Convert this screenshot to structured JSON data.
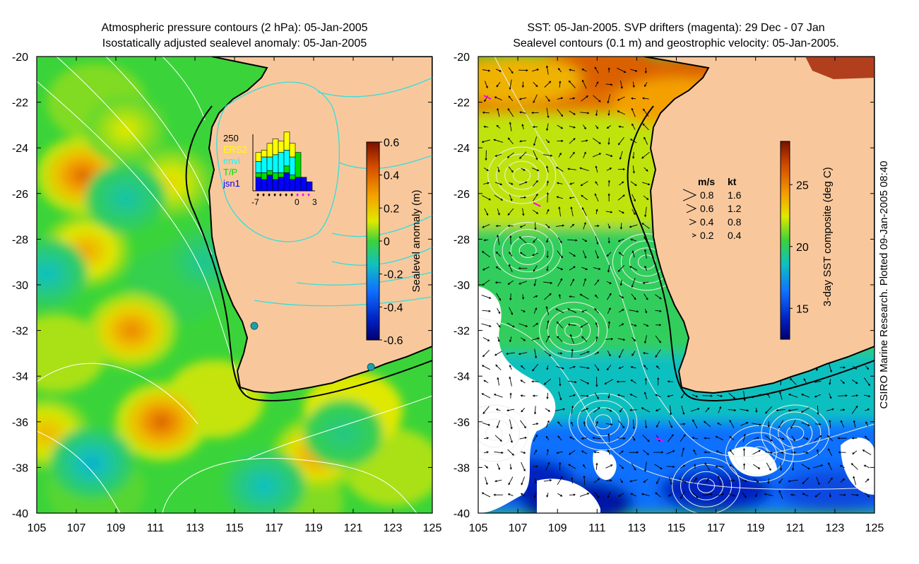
{
  "chart_data": [
    {
      "type": "heatmap",
      "title_line1": "Atmospheric pressure contours (2 hPa): 05-Jan-2005",
      "title_line2": "Isostatically adjusted sealevel anomaly: 05-Jan-2005",
      "xlabel": "",
      "ylabel": "",
      "xlim": [
        105,
        125
      ],
      "ylim": [
        -40,
        -20
      ],
      "x_ticks": [
        105,
        107,
        109,
        111,
        113,
        115,
        117,
        119,
        121,
        123,
        125
      ],
      "y_ticks": [
        -20,
        -22,
        -24,
        -26,
        -28,
        -30,
        -32,
        -34,
        -36,
        -38,
        -40
      ],
      "colorbar": {
        "label": "Sealevel anomaly (m)",
        "range": [
          -0.6,
          0.6
        ],
        "ticks": [
          0.6,
          0.4,
          0.2,
          0,
          -0.2,
          -0.4,
          -0.6
        ],
        "tick_labels": [
          "0.6",
          "0.4",
          "0.2",
          "0",
          "-0.2",
          "-0.4",
          "-0.6"
        ]
      },
      "features": [
        {
          "name": "high",
          "x": 107.3,
          "y": -25.2,
          "value": 0.38
        },
        {
          "name": "high",
          "x": 107.5,
          "y": -28.5,
          "value": 0.25
        },
        {
          "name": "high",
          "x": 109.8,
          "y": -32.0,
          "value": 0.32
        },
        {
          "name": "high",
          "x": 111.3,
          "y": -36.0,
          "value": 0.4
        },
        {
          "name": "high",
          "x": 119.2,
          "y": -37.4,
          "value": 0.28
        },
        {
          "name": "high",
          "x": 105.5,
          "y": -36.5,
          "value": 0.22
        },
        {
          "name": "high",
          "x": 111.8,
          "y": -25.5,
          "value": 0.15
        },
        {
          "name": "high",
          "x": 109.5,
          "y": -23.2,
          "value": 0.12
        },
        {
          "name": "low",
          "x": 109.5,
          "y": -26.2,
          "value": -0.12
        },
        {
          "name": "low",
          "x": 113.5,
          "y": -29.0,
          "value": -0.1
        },
        {
          "name": "low",
          "x": 105.5,
          "y": -29.5,
          "value": -0.15
        },
        {
          "name": "low",
          "x": 107.8,
          "y": -37.8,
          "value": -0.18
        },
        {
          "name": "low",
          "x": 116.5,
          "y": -38.8,
          "value": -0.15
        },
        {
          "name": "low",
          "x": 120.5,
          "y": -36.5,
          "value": -0.08
        }
      ],
      "tide_gauges": [
        {
          "x": 116.0,
          "y": -31.8
        },
        {
          "x": 121.9,
          "y": -33.6
        }
      ],
      "inset": {
        "y_tick_label": "250",
        "legend": [
          {
            "label": "ERS2",
            "color": "#ffff00"
          },
          {
            "label": "envi",
            "color": "#00ffff"
          },
          {
            "label": "T/P",
            "color": "#00dd00"
          },
          {
            "label": "jsn1",
            "color": "#0000ff"
          }
        ],
        "x_tick_labels": [
          "-7",
          "0",
          "3"
        ],
        "days": [
          -7,
          -6,
          -5,
          -4,
          -3,
          -2,
          -1,
          0,
          1,
          2
        ],
        "series": [
          {
            "name": "ERS2",
            "values": [
              40,
              30,
              60,
              70,
              50,
              80,
              60,
              0,
              0,
              0
            ]
          },
          {
            "name": "envi",
            "values": [
              50,
              70,
              60,
              80,
              90,
              70,
              80,
              0,
              0,
              0
            ]
          },
          {
            "name": "T/P",
            "values": [
              20,
              30,
              20,
              30,
              20,
              30,
              20,
              110,
              0,
              0
            ]
          },
          {
            "name": "jsn1",
            "values": [
              60,
              50,
              70,
              50,
              60,
              80,
              50,
              60,
              60,
              40
            ]
          }
        ]
      }
    },
    {
      "type": "heatmap",
      "title_line1": "SST: 05-Jan-2005. SVP drifters (magenta): 29 Dec - 07 Jan",
      "title_line2": "Sealevel contours (0.1 m) and geostrophic velocity: 05-Jan-2005.",
      "xlabel": "",
      "ylabel": "",
      "xlim": [
        105,
        125
      ],
      "ylim": [
        -40,
        -20
      ],
      "x_ticks": [
        105,
        107,
        109,
        111,
        113,
        115,
        117,
        119,
        121,
        123,
        125
      ],
      "y_ticks": [
        -20,
        -22,
        -24,
        -26,
        -28,
        -30,
        -32,
        -34,
        -36,
        -38,
        -40
      ],
      "colorbar": {
        "label": "3-day SST composite (deg C)",
        "range": [
          12.5,
          28.5
        ],
        "ticks": [
          25,
          20,
          15
        ],
        "tick_labels": [
          "25",
          "20",
          "15"
        ]
      },
      "sst_zones": [
        {
          "lat_top": -20,
          "lat_bottom": -22.5,
          "sst": 26
        },
        {
          "lat_top": -22.5,
          "lat_bottom": -27.5,
          "sst": 22.5
        },
        {
          "lat_top": -27.5,
          "lat_bottom": -33,
          "sst": 20
        },
        {
          "lat_top": -33,
          "lat_bottom": -36,
          "sst": 18.5
        },
        {
          "lat_top": -36,
          "lat_bottom": -40,
          "sst": 16.5
        }
      ],
      "velocity_legend": {
        "header_ms": "m/s",
        "header_kt": "kt",
        "rows": [
          {
            "ms": "0.8",
            "kt": "1.6"
          },
          {
            "ms": "0.6",
            "kt": "1.2"
          },
          {
            "ms": "0.4",
            "kt": "0.8"
          },
          {
            "ms": "0.2",
            "kt": "0.4"
          }
        ]
      },
      "drifters": [
        {
          "x": 108.0,
          "y": -26.5
        },
        {
          "x": 114.2,
          "y": -36.8
        },
        {
          "x": 105.5,
          "y": -21.8
        }
      ]
    }
  ],
  "side_note": "CSIRO Marine Research. Plotted 09-Jan-2005 08:40",
  "colors": {
    "land": "#f8c89c",
    "coast": "#000000",
    "contour_pressure": "#ffffff",
    "contour_inset_cyan": "#33dddd",
    "gauge": "#1fa0a8",
    "drifter": "#ff00ff"
  }
}
